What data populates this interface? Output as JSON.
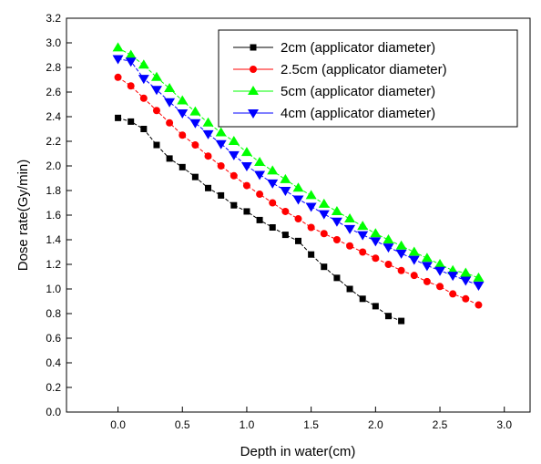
{
  "chart_data": {
    "type": "line",
    "title": "",
    "xlabel": "Depth in water(cm)",
    "ylabel": "Dose rate(Gy/min)",
    "xlim": [
      -0.4,
      3.2
    ],
    "ylim": [
      0.0,
      3.2
    ],
    "xticks": [
      "0.0",
      "0.5",
      "1.0",
      "1.5",
      "2.0",
      "2.5",
      "3.0"
    ],
    "yticks": [
      "0.0",
      "0.2",
      "0.4",
      "0.6",
      "0.8",
      "1.0",
      "1.2",
      "1.4",
      "1.6",
      "1.8",
      "2.0",
      "2.2",
      "2.4",
      "2.6",
      "2.8",
      "3.0",
      "3.2"
    ],
    "grid": false,
    "legend_position": "top-right",
    "series": [
      {
        "name": "2cm (applicator diameter)",
        "color": "#000000",
        "marker": "square",
        "x": [
          0.0,
          0.1,
          0.2,
          0.3,
          0.4,
          0.5,
          0.6,
          0.7,
          0.8,
          0.9,
          1.0,
          1.1,
          1.2,
          1.3,
          1.4,
          1.5,
          1.6,
          1.7,
          1.8,
          1.9,
          2.0,
          2.1,
          2.2
        ],
        "y": [
          2.39,
          2.36,
          2.3,
          2.17,
          2.06,
          1.99,
          1.91,
          1.82,
          1.76,
          1.68,
          1.63,
          1.56,
          1.5,
          1.44,
          1.39,
          1.28,
          1.18,
          1.09,
          1.0,
          0.92,
          0.86,
          0.78,
          0.74
        ]
      },
      {
        "name": "2.5cm (applicator diameter)",
        "color": "#ff0000",
        "marker": "circle",
        "x": [
          0.0,
          0.1,
          0.2,
          0.3,
          0.4,
          0.5,
          0.6,
          0.7,
          0.8,
          0.9,
          1.0,
          1.1,
          1.2,
          1.3,
          1.4,
          1.5,
          1.6,
          1.7,
          1.8,
          1.9,
          2.0,
          2.1,
          2.2,
          2.3,
          2.4,
          2.5,
          2.6,
          2.7,
          2.8
        ],
        "y": [
          2.72,
          2.65,
          2.55,
          2.45,
          2.35,
          2.25,
          2.17,
          2.08,
          2.0,
          1.92,
          1.84,
          1.77,
          1.7,
          1.63,
          1.57,
          1.5,
          1.45,
          1.4,
          1.35,
          1.3,
          1.25,
          1.2,
          1.15,
          1.11,
          1.06,
          1.02,
          0.96,
          0.92,
          0.87
        ]
      },
      {
        "name": "5cm (applicator diameter)",
        "color": "#00ff00",
        "marker": "triangle-up",
        "x": [
          0.0,
          0.1,
          0.2,
          0.3,
          0.4,
          0.5,
          0.6,
          0.7,
          0.8,
          0.9,
          1.0,
          1.1,
          1.2,
          1.3,
          1.4,
          1.5,
          1.6,
          1.7,
          1.8,
          1.9,
          2.0,
          2.1,
          2.2,
          2.3,
          2.4,
          2.5,
          2.6,
          2.7,
          2.8
        ],
        "y": [
          2.96,
          2.9,
          2.82,
          2.72,
          2.63,
          2.53,
          2.44,
          2.35,
          2.27,
          2.2,
          2.11,
          2.03,
          1.96,
          1.89,
          1.82,
          1.76,
          1.69,
          1.63,
          1.57,
          1.51,
          1.45,
          1.4,
          1.35,
          1.3,
          1.25,
          1.2,
          1.15,
          1.13,
          1.09
        ]
      },
      {
        "name": "4cm (applicator diameter)",
        "color": "#0000ff",
        "marker": "triangle-down",
        "x": [
          0.0,
          0.1,
          0.2,
          0.3,
          0.4,
          0.5,
          0.6,
          0.7,
          0.8,
          0.9,
          1.0,
          1.1,
          1.2,
          1.3,
          1.4,
          1.5,
          1.6,
          1.7,
          1.8,
          1.9,
          2.0,
          2.1,
          2.2,
          2.3,
          2.4,
          2.5,
          2.6,
          2.7,
          2.8
        ],
        "y": [
          2.87,
          2.85,
          2.71,
          2.62,
          2.52,
          2.43,
          2.35,
          2.26,
          2.18,
          2.09,
          2.0,
          1.93,
          1.86,
          1.8,
          1.73,
          1.67,
          1.61,
          1.55,
          1.49,
          1.44,
          1.39,
          1.34,
          1.29,
          1.24,
          1.19,
          1.15,
          1.11,
          1.07,
          1.03
        ]
      }
    ]
  }
}
